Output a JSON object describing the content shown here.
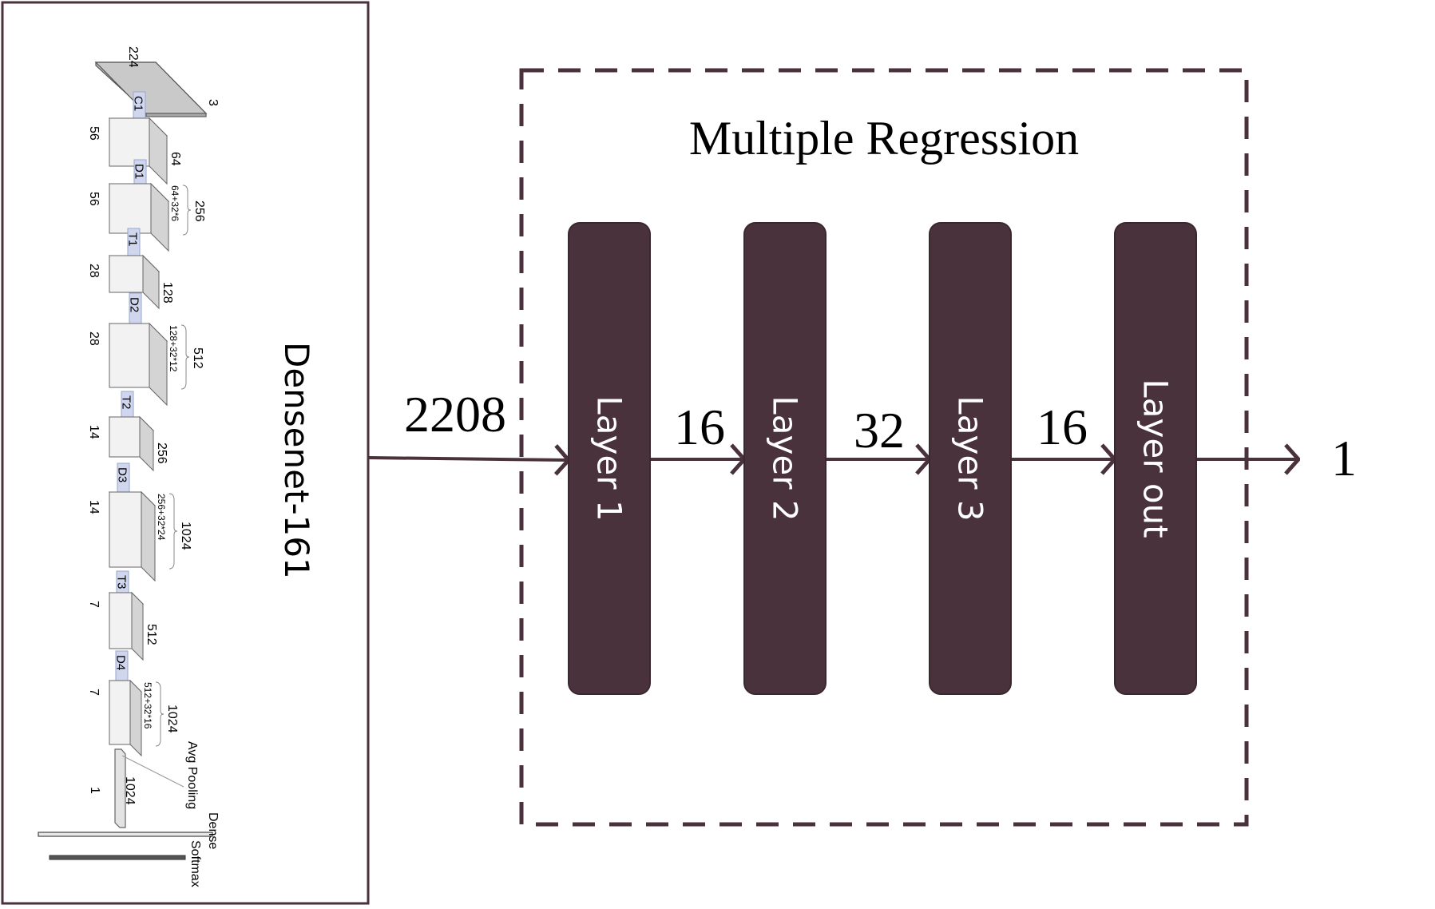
{
  "densenet": {
    "title": "Densenet-161",
    "input": {
      "width": "224",
      "height": "224",
      "channels": "3"
    },
    "blocks": [
      {
        "label": "C1",
        "spatial": "56",
        "channels": "64",
        "detail": ""
      },
      {
        "label": "D1",
        "spatial": "56",
        "channels": "256",
        "detail": "64+32*6"
      },
      {
        "label": "T1",
        "spatial": "28",
        "channels": "128",
        "detail": ""
      },
      {
        "label": "D2",
        "spatial": "28",
        "channels": "512",
        "detail": "128+32*12"
      },
      {
        "label": "T2",
        "spatial": "14",
        "channels": "256",
        "detail": ""
      },
      {
        "label": "D3",
        "spatial": "14",
        "channels": "1024",
        "detail": "256+32*24"
      },
      {
        "label": "T3",
        "spatial": "7",
        "channels": "512",
        "detail": ""
      },
      {
        "label": "D4",
        "spatial": "7",
        "channels": "1024",
        "detail": "512+32*16"
      }
    ],
    "pool": {
      "label": "Avg Pooling",
      "spatial": "1",
      "channels": "1024"
    },
    "dense_label": "Dense",
    "softmax_label": "Softmax"
  },
  "regression": {
    "title": "Multiple Regression",
    "input_dim": "2208",
    "layers": [
      {
        "label": "Layer 1",
        "out_dim": "16"
      },
      {
        "label": "Layer 2",
        "out_dim": "32"
      },
      {
        "label": "Layer 3",
        "out_dim": "16"
      },
      {
        "label": "Layer out",
        "out_dim": "1"
      }
    ]
  },
  "colors": {
    "layer_fill": "#4a323c",
    "arrow": "#4a323c",
    "border": "#4a323c",
    "cube_front": "#f2f2f2",
    "cube_top": "#e6e6e6",
    "cube_side": "#d4d4d4",
    "connector": "#cfd6ee",
    "input_plane": "#bfbfbf"
  }
}
